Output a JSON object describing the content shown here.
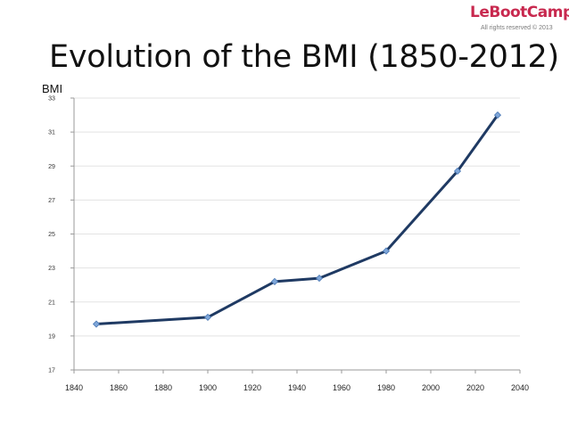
{
  "header": {
    "title": "Evolution of the BMI (1850-2012)",
    "logo": {
      "brand_text": "LeBootCamp",
      "rights": "All rights reserved © 2013",
      "accent": "#c8294f"
    }
  },
  "chart_data": {
    "type": "line",
    "title": "Evolution of the BMI (1850-2012)",
    "xlabel": "",
    "ylabel": "BMI",
    "xlim": [
      1840,
      2040
    ],
    "ylim": [
      17,
      33
    ],
    "x_ticks": [
      1840,
      1860,
      1880,
      1900,
      1920,
      1940,
      1960,
      1980,
      2000,
      2020,
      2040
    ],
    "y_ticks": [
      17,
      19,
      21,
      23,
      25,
      27,
      29,
      31,
      33
    ],
    "grid": "horizontal",
    "legend": "none",
    "series": [
      {
        "color": "#1f3a63",
        "marker_color": "#7fa6d8",
        "points": [
          {
            "x": 1850,
            "y": 19.7
          },
          {
            "x": 1900,
            "y": 20.1
          },
          {
            "x": 1930,
            "y": 22.2
          },
          {
            "x": 1950,
            "y": 22.4
          },
          {
            "x": 1980,
            "y": 24.0
          },
          {
            "x": 2012,
            "y": 28.7
          },
          {
            "x": 2030,
            "y": 32.0
          }
        ]
      }
    ]
  }
}
